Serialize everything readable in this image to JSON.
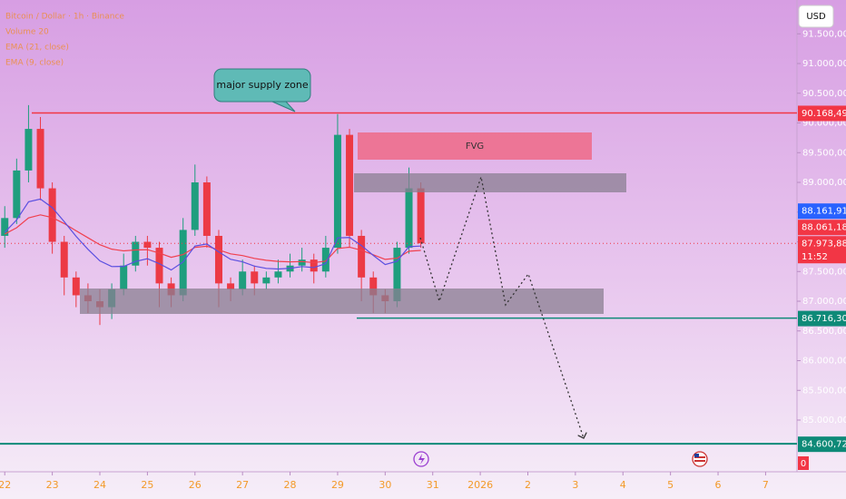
{
  "chart_data": {
    "type": "candlestick",
    "title": "Bitcoin / Dollar · 1h · Binance",
    "legend_volume": "Volume 20",
    "currency": "USD",
    "up_color": "#1f9e7e",
    "down_color": "#ec3a45",
    "x": [
      0,
      0.25,
      0.5,
      0.75,
      1,
      1.25,
      1.5,
      1.75,
      2,
      2.25,
      2.5,
      2.75,
      3,
      3.25,
      3.5,
      3.75,
      4,
      4.25,
      4.5,
      4.75,
      5,
      5.25,
      5.5,
      5.75,
      6,
      6.25,
      6.5,
      6.75,
      7,
      7.25,
      7.5,
      7.75,
      8,
      8.25,
      8.5,
      8.75
    ],
    "open": [
      88100,
      88400,
      89200,
      89900,
      88900,
      88000,
      87400,
      87100,
      87000,
      86900,
      87200,
      87600,
      88000,
      87900,
      87300,
      87100,
      88200,
      89000,
      88100,
      87300,
      87200,
      87500,
      87300,
      87400,
      87500,
      87600,
      87700,
      87500,
      87900,
      89800,
      88100,
      87400,
      87100,
      87000,
      87900,
      88900
    ],
    "high": [
      88600,
      89400,
      90300,
      90100,
      89000,
      88100,
      87500,
      87300,
      87200,
      87300,
      87800,
      88100,
      88100,
      88000,
      87400,
      88400,
      89300,
      89100,
      88200,
      87400,
      87700,
      87600,
      87500,
      87700,
      87800,
      87900,
      87800,
      88100,
      90150,
      89900,
      88200,
      87500,
      87200,
      88000,
      89250,
      89000
    ],
    "low": [
      87900,
      88300,
      89000,
      88700,
      87800,
      87100,
      86900,
      86800,
      86600,
      86700,
      87100,
      87500,
      87600,
      86900,
      86900,
      87000,
      88100,
      87900,
      86900,
      87000,
      87100,
      87100,
      87200,
      87300,
      87400,
      87500,
      87300,
      87400,
      87800,
      87900,
      87000,
      86800,
      86800,
      86900,
      87800,
      87900
    ],
    "close": [
      88400,
      89200,
      89900,
      88900,
      88000,
      87400,
      87100,
      87000,
      86900,
      87200,
      87600,
      88000,
      87900,
      87300,
      87100,
      88200,
      89000,
      88100,
      87300,
      87200,
      87500,
      87300,
      87400,
      87500,
      87600,
      87700,
      87500,
      87900,
      89800,
      88100,
      87400,
      87100,
      87000,
      87900,
      88900,
      87973.88
    ],
    "series": [
      {
        "name": "EMA (21, close)",
        "color": "#f0404e",
        "values": [
          88130,
          88237,
          88403,
          88453,
          88408,
          88307,
          88186,
          88068,
          87951,
          87876,
          87848,
          87863,
          87867,
          87810,
          87739,
          87785,
          87907,
          87926,
          87864,
          87797,
          87768,
          87721,
          87689,
          87670,
          87663,
          87667,
          87650,
          87675,
          87888,
          87909,
          87858,
          87782,
          87704,
          87724,
          87842,
          87855
        ]
      },
      {
        "name": "EMA (9, close)",
        "color": "#5a4fe0",
        "values": [
          88160,
          88368,
          88674,
          88719,
          88575,
          88340,
          88092,
          87874,
          87679,
          87583,
          87586,
          87669,
          87715,
          87632,
          87526,
          87661,
          87929,
          87963,
          87831,
          87705,
          87664,
          87591,
          87553,
          87542,
          87554,
          87583,
          87566,
          87633,
          88066,
          88073,
          87938,
          87771,
          87617,
          87673,
          87918,
          87929
        ]
      }
    ],
    "xlim": [
      -0.1,
      16.66
    ],
    "xticks": [
      {
        "value": 0,
        "label": "22"
      },
      {
        "value": 1,
        "label": "23"
      },
      {
        "value": 2,
        "label": "24"
      },
      {
        "value": 3,
        "label": "25"
      },
      {
        "value": 4,
        "label": "26"
      },
      {
        "value": 5,
        "label": "27"
      },
      {
        "value": 6,
        "label": "28"
      },
      {
        "value": 7,
        "label": "29"
      },
      {
        "value": 8,
        "label": "30"
      },
      {
        "value": 9,
        "label": "31"
      },
      {
        "value": 10,
        "label": "2026"
      },
      {
        "value": 11,
        "label": "2"
      },
      {
        "value": 12,
        "label": "3"
      },
      {
        "value": 13,
        "label": "4"
      },
      {
        "value": 14,
        "label": "5"
      },
      {
        "value": 15,
        "label": "6"
      },
      {
        "value": 16,
        "label": "7"
      }
    ],
    "ylim": [
      84130,
      92069
    ],
    "yticks": [
      {
        "value": 85000,
        "label": "85.000,00"
      },
      {
        "value": 85500,
        "label": "85.500,00"
      },
      {
        "value": 86000,
        "label": "86.000,00"
      },
      {
        "value": 86500,
        "label": "86.500,00"
      },
      {
        "value": 87000,
        "label": "87.000,00"
      },
      {
        "value": 87500,
        "label": "87.500,00"
      },
      {
        "value": 88000,
        "label": "88.000,00"
      },
      {
        "value": 88500,
        "label": "88.500,00"
      },
      {
        "value": 89000,
        "label": "89.000,00"
      },
      {
        "value": 89500,
        "label": "89.500,00"
      },
      {
        "value": 90000,
        "label": "90.000,00"
      },
      {
        "value": 90500,
        "label": "90.500,00"
      },
      {
        "value": 91000,
        "label": "91.000,00"
      },
      {
        "value": 91500,
        "label": "91.500,00"
      }
    ],
    "price_labels": [
      {
        "value": 90168.49,
        "label": "90.168,49",
        "color": "#f23645"
      },
      {
        "value": 88161.91,
        "label": "88.161,91",
        "color": "#2962ff"
      },
      {
        "value": 88061.18,
        "label": "88.061,18",
        "color": "#f23645"
      },
      {
        "value": 87973.88,
        "label": "87.973,88",
        "color": "#f23645",
        "countdown": "11:52"
      },
      {
        "value": 86716.3,
        "label": "86.716,30",
        "color": "#0e8a78"
      },
      {
        "value": 84600.72,
        "label": "84.600,72",
        "color": "#0e8a78"
      }
    ],
    "volume_axis_label": 0,
    "annotations": {
      "supply_zone": "major supply zone",
      "fvg": "FVG"
    }
  }
}
